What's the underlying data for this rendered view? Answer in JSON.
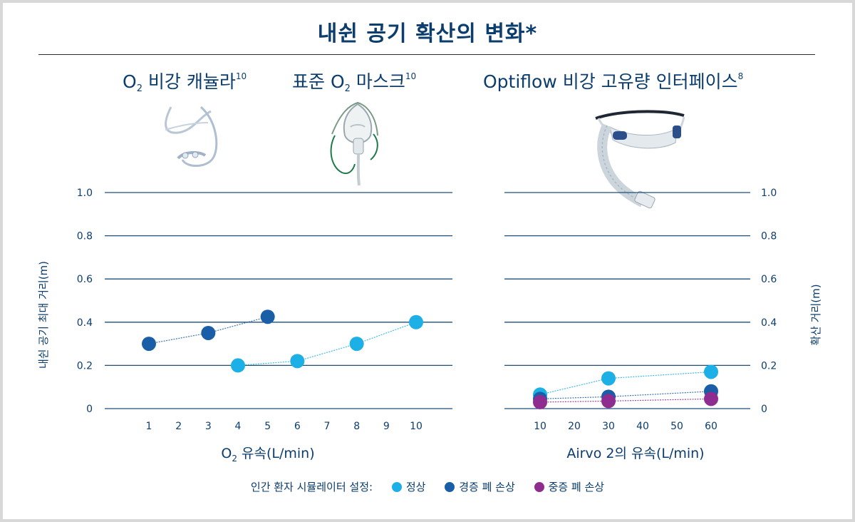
{
  "title": "내쉰 공기 확산의 변화*",
  "devices": {
    "nasal_cannula": {
      "pre": "O",
      "sub": "2",
      "text": " 비강 캐뉼라",
      "sup": "10"
    },
    "mask": {
      "pre": "표준 O",
      "sub": "2",
      "text": " 마스크",
      "sup": "10"
    },
    "optiflow": {
      "text": "Optiflow 비강 고유량 인터페이스",
      "sup": "8"
    }
  },
  "legend": {
    "prefix": "인간 환자 시뮬레이터 설정:",
    "items": [
      {
        "label": "정상",
        "color": "#1cb0e6"
      },
      {
        "label": "경증 폐 손상",
        "color": "#1a5ea8"
      },
      {
        "label": "중증 폐 손상",
        "color": "#8e2c8f"
      }
    ]
  },
  "chart_data": [
    {
      "type": "scatter",
      "xlabel_pre": "O",
      "xlabel_sub": "2",
      "xlabel_rest": " 유속(L/min)",
      "ylabel": "내쉰 공기 최대 거리(m)",
      "x_ticks": [
        1,
        2,
        3,
        4,
        5,
        6,
        7,
        8,
        9,
        10
      ],
      "y_ticks": [
        "0",
        "0.2",
        "0.4",
        "0.6",
        "0.8",
        "1.0"
      ],
      "ylim": [
        0,
        1.0
      ],
      "grid": true,
      "series": [
        {
          "name": "경증 폐 손상",
          "color": "#1a5ea8",
          "x": [
            1,
            3,
            5
          ],
          "y": [
            0.3,
            0.35,
            0.425
          ]
        },
        {
          "name": "정상",
          "color": "#1cb0e6",
          "x": [
            4,
            6,
            8,
            10
          ],
          "y": [
            0.2,
            0.22,
            0.3,
            0.4
          ]
        }
      ]
    },
    {
      "type": "scatter",
      "xlabel": "Airvo 2의 유속(L/min)",
      "ylabel": "확산 거리(m)",
      "x_ticks": [
        10,
        20,
        30,
        40,
        50,
        60
      ],
      "y_ticks": [
        "0",
        "0.2",
        "0.4",
        "0.6",
        "0.8",
        "1.0"
      ],
      "ylim": [
        0,
        1.0
      ],
      "grid": true,
      "series": [
        {
          "name": "정상",
          "color": "#1cb0e6",
          "x": [
            10,
            30,
            60
          ],
          "y": [
            0.065,
            0.14,
            0.17
          ]
        },
        {
          "name": "경증 폐 손상",
          "color": "#1a5ea8",
          "x": [
            10,
            30,
            60
          ],
          "y": [
            0.045,
            0.055,
            0.08
          ]
        },
        {
          "name": "중증 폐 손상",
          "color": "#8e2c8f",
          "x": [
            10,
            30,
            60
          ],
          "y": [
            0.03,
            0.035,
            0.045
          ]
        }
      ]
    }
  ]
}
